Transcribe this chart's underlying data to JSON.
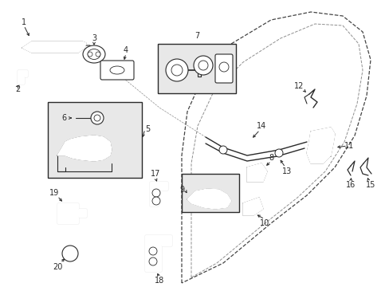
{
  "bg_color": "#ffffff",
  "fig_w": 4.89,
  "fig_h": 3.6,
  "dpi": 100,
  "line_color": "#2a2a2a",
  "box_fill": "#e8e8e8",
  "dashed_color": "#444444"
}
